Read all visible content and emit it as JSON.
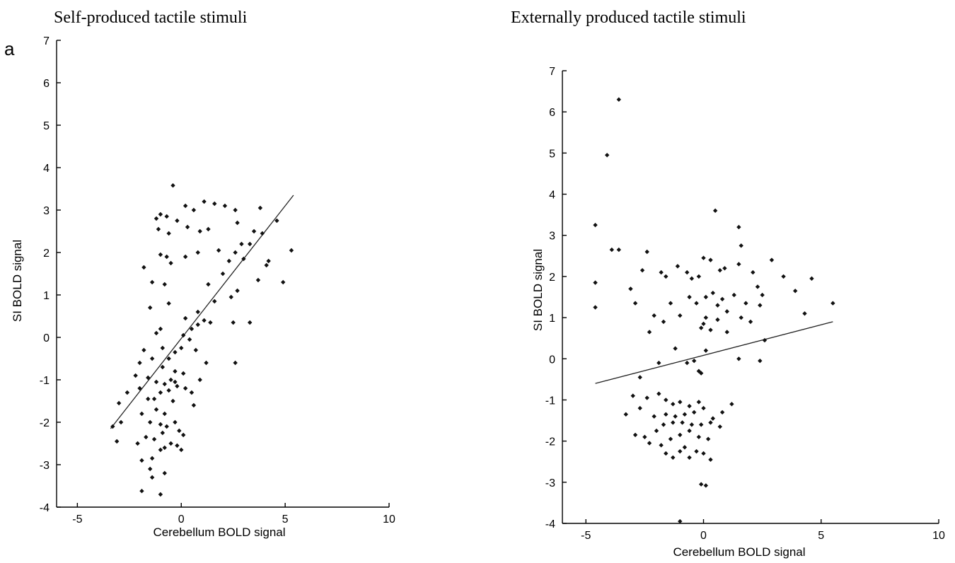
{
  "figure": {
    "panel_letter": "a",
    "titles": [
      "Self-produced tactile stimuli",
      "Externally produced tactile stimuli"
    ]
  },
  "chart_data": [
    {
      "type": "scatter",
      "title": "Self-produced tactile stimuli",
      "xlabel": "Cerebellum BOLD signal",
      "ylabel": "SI BOLD signal",
      "xlim": [
        -6,
        10
      ],
      "ylim": [
        -4,
        7
      ],
      "xticks": [
        -5,
        0,
        5,
        10
      ],
      "yticks": [
        -4,
        -3,
        -2,
        -1,
        0,
        1,
        2,
        3,
        4,
        5,
        6,
        7
      ],
      "grid": false,
      "fit_line": {
        "x": [
          -3.4,
          5.4
        ],
        "y": [
          -2.15,
          3.35
        ]
      },
      "points": [
        [
          -0.4,
          3.58
        ],
        [
          -1.0,
          2.9
        ],
        [
          -1.2,
          2.8
        ],
        [
          -0.7,
          2.85
        ],
        [
          -0.2,
          2.75
        ],
        [
          0.2,
          3.1
        ],
        [
          0.6,
          3.0
        ],
        [
          1.1,
          3.2
        ],
        [
          1.6,
          3.15
        ],
        [
          2.1,
          3.1
        ],
        [
          2.6,
          3.0
        ],
        [
          3.8,
          3.05
        ],
        [
          4.6,
          2.75
        ],
        [
          5.3,
          2.05
        ],
        [
          4.9,
          1.3
        ],
        [
          -1.1,
          2.55
        ],
        [
          -0.6,
          2.45
        ],
        [
          0.3,
          2.6
        ],
        [
          0.9,
          2.5
        ],
        [
          1.3,
          2.55
        ],
        [
          2.7,
          2.7
        ],
        [
          3.5,
          2.5
        ],
        [
          3.9,
          2.45
        ],
        [
          2.9,
          2.2
        ],
        [
          3.3,
          2.2
        ],
        [
          2.6,
          2.0
        ],
        [
          1.8,
          2.05
        ],
        [
          2.3,
          1.8
        ],
        [
          3.0,
          1.85
        ],
        [
          4.2,
          1.8
        ],
        [
          4.1,
          1.7
        ],
        [
          2.0,
          1.5
        ],
        [
          3.7,
          1.35
        ],
        [
          0.8,
          2.0
        ],
        [
          0.2,
          1.9
        ],
        [
          -1.8,
          1.65
        ],
        [
          -1.0,
          1.95
        ],
        [
          -0.7,
          1.9
        ],
        [
          -0.5,
          1.75
        ],
        [
          -1.4,
          1.3
        ],
        [
          -0.8,
          1.25
        ],
        [
          1.3,
          1.25
        ],
        [
          2.7,
          1.1
        ],
        [
          2.4,
          0.95
        ],
        [
          1.6,
          0.85
        ],
        [
          1.1,
          0.4
        ],
        [
          0.8,
          0.3
        ],
        [
          1.4,
          0.35
        ],
        [
          2.5,
          0.35
        ],
        [
          3.3,
          0.35
        ],
        [
          2.6,
          -0.6
        ],
        [
          -1.5,
          0.7
        ],
        [
          -0.6,
          0.8
        ],
        [
          -1.0,
          0.2
        ],
        [
          -1.2,
          0.1
        ],
        [
          -0.9,
          -0.25
        ],
        [
          -1.4,
          -0.5
        ],
        [
          -1.8,
          -0.3
        ],
        [
          -2.0,
          -0.6
        ],
        [
          -2.2,
          -0.9
        ],
        [
          -2.6,
          -1.3
        ],
        [
          -3.0,
          -1.55
        ],
        [
          -3.3,
          -2.1
        ],
        [
          -3.1,
          -2.45
        ],
        [
          -2.9,
          -2.0
        ],
        [
          -2.0,
          -1.2
        ],
        [
          0.2,
          0.45
        ],
        [
          0.5,
          0.2
        ],
        [
          0.8,
          0.6
        ],
        [
          0.1,
          0.05
        ],
        [
          0.4,
          -0.05
        ],
        [
          0.0,
          -0.25
        ],
        [
          0.7,
          -0.3
        ],
        [
          1.2,
          -0.6
        ],
        [
          -0.3,
          -0.35
        ],
        [
          -0.6,
          -0.5
        ],
        [
          -0.9,
          -0.7
        ],
        [
          -0.3,
          -0.8
        ],
        [
          0.1,
          -0.85
        ],
        [
          -1.6,
          -0.95
        ],
        [
          -1.2,
          -1.05
        ],
        [
          -0.8,
          -1.1
        ],
        [
          -0.5,
          -1.0
        ],
        [
          -0.3,
          -1.05
        ],
        [
          -0.2,
          -1.15
        ],
        [
          -0.6,
          -1.25
        ],
        [
          -1.0,
          -1.3
        ],
        [
          -1.3,
          -1.45
        ],
        [
          -1.6,
          -1.45
        ],
        [
          -0.4,
          -1.5
        ],
        [
          0.2,
          -1.2
        ],
        [
          0.5,
          -1.3
        ],
        [
          0.9,
          -1.0
        ],
        [
          0.6,
          -1.6
        ],
        [
          -1.9,
          -1.8
        ],
        [
          -1.2,
          -1.7
        ],
        [
          -0.8,
          -1.8
        ],
        [
          -1.5,
          -2.0
        ],
        [
          -1.0,
          -2.05
        ],
        [
          -0.7,
          -2.1
        ],
        [
          -0.3,
          -2.0
        ],
        [
          -0.1,
          -2.2
        ],
        [
          0.1,
          -2.3
        ],
        [
          -0.9,
          -2.25
        ],
        [
          -1.7,
          -2.35
        ],
        [
          -1.3,
          -2.4
        ],
        [
          -2.1,
          -2.5
        ],
        [
          -1.9,
          -2.9
        ],
        [
          -1.4,
          -2.85
        ],
        [
          -0.8,
          -2.6
        ],
        [
          -0.5,
          -2.5
        ],
        [
          -0.2,
          -2.55
        ],
        [
          0.0,
          -2.65
        ],
        [
          -1.0,
          -2.65
        ],
        [
          -1.5,
          -3.1
        ],
        [
          -1.4,
          -3.3
        ],
        [
          -0.8,
          -3.2
        ],
        [
          -1.9,
          -3.62
        ],
        [
          -1.0,
          -3.7
        ]
      ]
    },
    {
      "type": "scatter",
      "title": "Externally produced tactile stimuli",
      "xlabel": "Cerebellum BOLD signal",
      "ylabel": "SI BOLD signal",
      "xlim": [
        -6,
        10
      ],
      "ylim": [
        -4,
        7
      ],
      "xticks": [
        -5,
        0,
        5,
        10
      ],
      "yticks": [
        -4,
        -3,
        -2,
        -1,
        0,
        1,
        2,
        3,
        4,
        5,
        6,
        7
      ],
      "grid": false,
      "fit_line": {
        "x": [
          -4.6,
          5.5
        ],
        "y": [
          -0.6,
          0.9
        ]
      },
      "points": [
        [
          -3.6,
          6.3
        ],
        [
          -4.1,
          4.95
        ],
        [
          -4.6,
          3.25
        ],
        [
          -3.9,
          2.65
        ],
        [
          -3.6,
          2.65
        ],
        [
          0.5,
          3.6
        ],
        [
          1.5,
          3.2
        ],
        [
          1.6,
          2.75
        ],
        [
          2.9,
          2.4
        ],
        [
          4.6,
          1.95
        ],
        [
          5.5,
          1.35
        ],
        [
          4.3,
          1.1
        ],
        [
          3.4,
          2.0
        ],
        [
          3.9,
          1.65
        ],
        [
          -4.6,
          1.85
        ],
        [
          -4.6,
          1.25
        ],
        [
          -3.1,
          1.7
        ],
        [
          -2.9,
          1.35
        ],
        [
          -2.4,
          2.6
        ],
        [
          -2.6,
          2.15
        ],
        [
          -1.8,
          2.1
        ],
        [
          -1.6,
          2.0
        ],
        [
          -1.1,
          2.25
        ],
        [
          -0.7,
          2.1
        ],
        [
          -0.5,
          1.95
        ],
        [
          -0.2,
          2.0
        ],
        [
          0.0,
          2.45
        ],
        [
          0.3,
          2.4
        ],
        [
          0.7,
          2.15
        ],
        [
          0.9,
          2.2
        ],
        [
          1.5,
          2.3
        ],
        [
          2.1,
          2.1
        ],
        [
          2.3,
          1.75
        ],
        [
          2.5,
          1.55
        ],
        [
          -2.1,
          1.05
        ],
        [
          -1.4,
          1.35
        ],
        [
          -1.0,
          1.05
        ],
        [
          -0.6,
          1.5
        ],
        [
          -0.3,
          1.35
        ],
        [
          0.1,
          1.5
        ],
        [
          0.4,
          1.6
        ],
        [
          0.6,
          1.3
        ],
        [
          0.8,
          1.45
        ],
        [
          1.0,
          1.15
        ],
        [
          1.3,
          1.55
        ],
        [
          1.6,
          1.0
        ],
        [
          1.8,
          1.35
        ],
        [
          2.0,
          0.9
        ],
        [
          2.4,
          1.3
        ],
        [
          0.1,
          1.0
        ],
        [
          0.0,
          0.85
        ],
        [
          -0.1,
          0.75
        ],
        [
          0.3,
          0.7
        ],
        [
          0.6,
          0.95
        ],
        [
          1.0,
          0.65
        ],
        [
          -1.7,
          0.9
        ],
        [
          -2.3,
          0.65
        ],
        [
          -1.2,
          0.25
        ],
        [
          -0.7,
          -0.1
        ],
        [
          -0.4,
          -0.05
        ],
        [
          -0.2,
          -0.3
        ],
        [
          -0.1,
          -0.35
        ],
        [
          0.1,
          0.2
        ],
        [
          1.5,
          0.0
        ],
        [
          2.4,
          -0.05
        ],
        [
          2.6,
          0.45
        ],
        [
          -2.7,
          -0.45
        ],
        [
          -1.9,
          -0.1
        ],
        [
          -3.0,
          -0.9
        ],
        [
          -2.7,
          -1.2
        ],
        [
          -3.3,
          -1.35
        ],
        [
          -2.4,
          -0.95
        ],
        [
          -1.9,
          -0.85
        ],
        [
          -1.6,
          -1.0
        ],
        [
          -1.3,
          -1.1
        ],
        [
          -1.0,
          -1.05
        ],
        [
          -0.6,
          -1.15
        ],
        [
          -0.2,
          -1.05
        ],
        [
          0.0,
          -1.2
        ],
        [
          -0.4,
          -1.3
        ],
        [
          -0.8,
          -1.35
        ],
        [
          -1.2,
          -1.4
        ],
        [
          -1.6,
          -1.35
        ],
        [
          -2.1,
          -1.4
        ],
        [
          1.2,
          -1.1
        ],
        [
          0.8,
          -1.3
        ],
        [
          0.4,
          -1.45
        ],
        [
          -2.9,
          -1.85
        ],
        [
          -2.5,
          -1.9
        ],
        [
          -2.0,
          -1.75
        ],
        [
          -1.7,
          -1.6
        ],
        [
          -1.3,
          -1.55
        ],
        [
          -0.9,
          -1.55
        ],
        [
          -0.5,
          -1.6
        ],
        [
          -0.1,
          -1.6
        ],
        [
          0.3,
          -1.55
        ],
        [
          0.7,
          -1.65
        ],
        [
          -0.6,
          -1.75
        ],
        [
          -1.0,
          -1.85
        ],
        [
          -1.4,
          -1.95
        ],
        [
          -1.8,
          -2.1
        ],
        [
          -2.3,
          -2.05
        ],
        [
          -0.2,
          -1.9
        ],
        [
          0.2,
          -1.95
        ],
        [
          -1.6,
          -2.3
        ],
        [
          -1.3,
          -2.4
        ],
        [
          -1.0,
          -2.25
        ],
        [
          -0.6,
          -2.4
        ],
        [
          -0.3,
          -2.25
        ],
        [
          0.0,
          -2.3
        ],
        [
          0.3,
          -2.45
        ],
        [
          -0.8,
          -2.15
        ],
        [
          -0.1,
          -3.05
        ],
        [
          0.1,
          -3.08
        ],
        [
          -1.0,
          -3.95
        ]
      ]
    }
  ]
}
